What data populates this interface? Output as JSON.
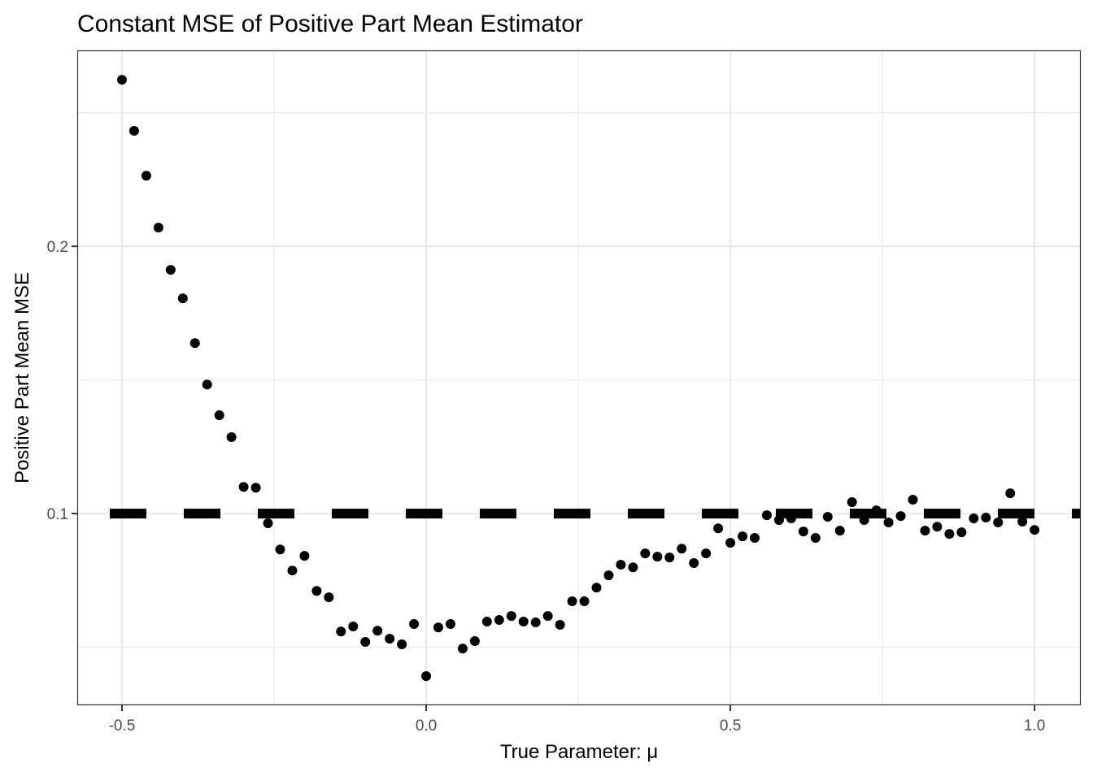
{
  "chart_data": {
    "type": "scatter",
    "title": "Constant MSE of Positive Part Mean Estimator",
    "xlabel": "True Parameter: μ",
    "ylabel": "Positive Part Mean MSE",
    "xlim": [
      -0.5735,
      1.076
    ],
    "ylim": [
      0.0283,
      0.2733
    ],
    "x_ticks": [
      -0.5,
      0.0,
      0.5,
      1.0
    ],
    "x_tick_labels": [
      "-0.5",
      "0.0",
      "0.5",
      "1.0"
    ],
    "y_ticks": [
      0.1,
      0.2
    ],
    "y_tick_labels": [
      "0.1",
      "0.2"
    ],
    "x_minor": [
      -0.25,
      0.25,
      0.75
    ],
    "y_minor": [
      0.05,
      0.15,
      0.25
    ],
    "grid": true,
    "reference_line": {
      "y": 0.1,
      "style": "dashed",
      "color": "#000000"
    },
    "point_color": "#000000",
    "x": [
      -0.5,
      -0.48,
      -0.46,
      -0.44,
      -0.42,
      -0.4,
      -0.38,
      -0.36,
      -0.34,
      -0.32,
      -0.3,
      -0.28,
      -0.26,
      -0.24,
      -0.22,
      -0.2,
      -0.18,
      -0.16,
      -0.14,
      -0.12,
      -0.1,
      -0.08,
      -0.06,
      -0.04,
      -0.02,
      0.0,
      0.02,
      0.04,
      0.06,
      0.08,
      0.1,
      0.12,
      0.14,
      0.16,
      0.18,
      0.2,
      0.22,
      0.24,
      0.26,
      0.28,
      0.3,
      0.32,
      0.34,
      0.36,
      0.38,
      0.4,
      0.42,
      0.44,
      0.46,
      0.48,
      0.5,
      0.52,
      0.54,
      0.56,
      0.58,
      0.6,
      0.62,
      0.64,
      0.66,
      0.68,
      0.7,
      0.72,
      0.74,
      0.76,
      0.78,
      0.8,
      0.82,
      0.84,
      0.86,
      0.88,
      0.9,
      0.92,
      0.94,
      0.96,
      0.98,
      1.0
    ],
    "y": [
      0.2623,
      0.2432,
      0.2264,
      0.207,
      0.1912,
      0.1805,
      0.1638,
      0.1483,
      0.1368,
      0.1286,
      0.11,
      0.1097,
      0.0964,
      0.0866,
      0.0787,
      0.0842,
      0.0711,
      0.0687,
      0.0559,
      0.0578,
      0.052,
      0.0562,
      0.0532,
      0.0511,
      0.0587,
      0.0392,
      0.0574,
      0.0587,
      0.0495,
      0.0523,
      0.0596,
      0.0602,
      0.0617,
      0.0596,
      0.0593,
      0.0617,
      0.0584,
      0.0672,
      0.0672,
      0.0723,
      0.0769,
      0.0809,
      0.0799,
      0.0851,
      0.0839,
      0.0836,
      0.0869,
      0.0815,
      0.0851,
      0.0945,
      0.0891,
      0.0915,
      0.0909,
      0.0994,
      0.0976,
      0.0982,
      0.0933,
      0.0909,
      0.0988,
      0.0936,
      0.1043,
      0.0976,
      0.1012,
      0.0967,
      0.0991,
      0.1052,
      0.0936,
      0.0951,
      0.0924,
      0.093,
      0.0982,
      0.0985,
      0.0967,
      0.1076,
      0.097,
      0.0939
    ]
  }
}
